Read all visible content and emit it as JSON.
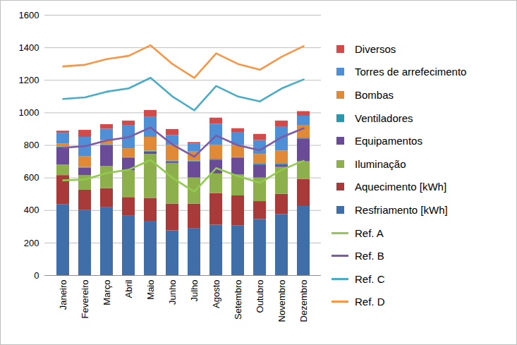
{
  "chart_data": {
    "type": "bar",
    "stacked": true,
    "grid": true,
    "legend": "right",
    "categories": [
      "Janeiro",
      "Fevereiro",
      "Março",
      "Abril",
      "Maio",
      "Junho",
      "Julho",
      "Agosto",
      "Setembro",
      "Outubro",
      "Novembro",
      "Dezembro"
    ],
    "ylim": [
      0,
      1600
    ],
    "yticks": [
      0,
      200,
      400,
      600,
      800,
      1000,
      1200,
      1400,
      1600
    ],
    "series": [
      {
        "name": "Resfriamento [kWh]",
        "type": "bar",
        "color": "#3f6ea8",
        "values": [
          435,
          400,
          420,
          365,
          330,
          275,
          290,
          310,
          305,
          345,
          375,
          425
        ]
      },
      {
        "name": "Aquecimento [kWh]",
        "type": "bar",
        "color": "#a83a3a",
        "values": [
          180,
          125,
          115,
          115,
          145,
          165,
          150,
          195,
          185,
          110,
          125,
          165
        ]
      },
      {
        "name": "Iluminação",
        "type": "bar",
        "color": "#8db04c",
        "values": [
          65,
          90,
          135,
          165,
          270,
          250,
          160,
          120,
          130,
          145,
          165,
          110
        ]
      },
      {
        "name": "Equipamentos",
        "type": "bar",
        "color": "#6a4b97",
        "values": [
          105,
          45,
          130,
          75,
          15,
          10,
          100,
          85,
          100,
          80,
          15,
          140
        ]
      },
      {
        "name": "Ventiladores",
        "type": "bar",
        "color": "#2b97ac",
        "values": [
          5,
          5,
          5,
          5,
          5,
          5,
          5,
          5,
          5,
          5,
          5,
          5
        ]
      },
      {
        "name": "Bombas",
        "type": "bar",
        "color": "#e08a38",
        "values": [
          20,
          65,
          25,
          55,
          85,
          95,
          55,
          85,
          75,
          60,
          80,
          75
        ]
      },
      {
        "name": "Torres de arrefecimento",
        "type": "bar",
        "color": "#4f8fd6",
        "values": [
          65,
          120,
          70,
          140,
          125,
          60,
          50,
          130,
          80,
          85,
          150,
          60
        ]
      },
      {
        "name": "Diversos",
        "type": "bar",
        "color": "#d24b4b",
        "values": [
          13,
          43,
          28,
          30,
          40,
          38,
          8,
          38,
          23,
          38,
          35,
          28
        ]
      },
      {
        "name": "Ref. A",
        "type": "line",
        "color": "#92c94f",
        "values": [
          585,
          590,
          630,
          650,
          710,
          600,
          515,
          660,
          610,
          570,
          650,
          705
        ]
      },
      {
        "name": "Ref. B",
        "type": "line",
        "color": "#7d5aa6",
        "values": [
          785,
          795,
          830,
          850,
          910,
          805,
          730,
          860,
          800,
          770,
          850,
          905
        ]
      },
      {
        "name": "Ref. C",
        "type": "line",
        "color": "#4bacc6",
        "values": [
          1085,
          1095,
          1130,
          1150,
          1215,
          1100,
          1015,
          1165,
          1100,
          1070,
          1150,
          1205
        ]
      },
      {
        "name": "Ref. D",
        "type": "line",
        "color": "#f79646",
        "values": [
          1285,
          1295,
          1330,
          1350,
          1415,
          1300,
          1215,
          1365,
          1300,
          1265,
          1345,
          1410
        ]
      }
    ]
  }
}
